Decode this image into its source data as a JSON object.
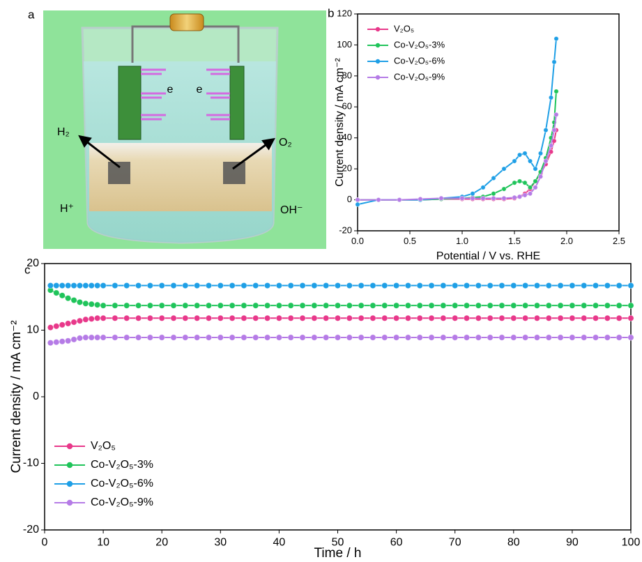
{
  "illustration": {
    "panel_label": "a",
    "electron_labels": [
      "e",
      "e"
    ],
    "left_gas": "H₂",
    "right_gas": "O₂",
    "left_ion": "H⁺",
    "right_ion": "OH⁻"
  },
  "chart_data": [
    {
      "type": "line",
      "panel_label": "b",
      "x_label": "Potential / V vs. RHE",
      "y_label": "Current density / mA cm⁻²",
      "x": [
        0,
        0.2,
        0.4,
        0.6,
        0.8,
        1.0,
        1.1,
        1.2,
        1.3,
        1.4,
        1.5,
        1.55,
        1.6,
        1.65,
        1.7,
        1.75,
        1.8,
        1.85,
        1.88,
        1.9
      ],
      "series": [
        {
          "name": "V₂O₅",
          "color": "#e8388a",
          "values": [
            0,
            0,
            0,
            0,
            0.5,
            0.5,
            0.5,
            0.5,
            0.5,
            0.5,
            1,
            2,
            4,
            7,
            12,
            17,
            23,
            31,
            38,
            45
          ]
        },
        {
          "name": "Co-V₂O₅-3%",
          "color": "#1fc45a",
          "values": [
            0,
            0,
            0,
            0,
            0.5,
            1,
            1.5,
            2,
            4,
            7,
            11,
            12,
            11,
            8,
            12,
            18,
            27,
            40,
            50,
            70
          ]
        },
        {
          "name": "Co-V₂O₅-6%",
          "color": "#1e9fe6",
          "values": [
            -3,
            0,
            0,
            0,
            1,
            2,
            4,
            8,
            14,
            20,
            25,
            29,
            30,
            25,
            20,
            30,
            45,
            66,
            89,
            104
          ]
        },
        {
          "name": "Co-V₂O₅-9%",
          "color": "#b57be6",
          "values": [
            0,
            0,
            0,
            0.5,
            1,
            1,
            1,
            1,
            1,
            1,
            1.5,
            2,
            3,
            4,
            8,
            15,
            25,
            35,
            45,
            55
          ]
        }
      ],
      "xlim": [
        0,
        2.5
      ],
      "ylim": [
        -20,
        120
      ],
      "xticks": [
        {
          "value": 0,
          "label": "0.0"
        },
        0.5,
        {
          "value": 1,
          "label": "1.0"
        },
        1.5,
        {
          "value": 2,
          "label": "2.0"
        },
        2.5
      ],
      "yticks": [
        -20,
        0,
        20,
        40,
        60,
        80,
        100,
        120
      ],
      "legend": "upper left"
    },
    {
      "type": "line",
      "panel_label": "c",
      "x_label": "Time / h",
      "y_label": "Current density / mA cm⁻²",
      "x": [
        1,
        2,
        3,
        4,
        5,
        6,
        7,
        8,
        9,
        10,
        12,
        14,
        16,
        18,
        20,
        22,
        24,
        26,
        28,
        30,
        32,
        34,
        36,
        38,
        40,
        42,
        44,
        46,
        48,
        50,
        52,
        54,
        56,
        58,
        60,
        62,
        64,
        66,
        68,
        70,
        72,
        74,
        76,
        78,
        80,
        82,
        84,
        86,
        88,
        90,
        92,
        94,
        96,
        98,
        100
      ],
      "series": [
        {
          "name": "V₂O₅",
          "color": "#e8388a",
          "values": [
            10.4,
            10.6,
            10.8,
            11,
            11.2,
            11.4,
            11.6,
            11.7,
            11.8,
            11.8,
            11.8,
            11.8,
            11.8,
            11.8,
            11.8,
            11.8,
            11.8,
            11.8,
            11.8,
            11.8,
            11.8,
            11.8,
            11.8,
            11.8,
            11.8,
            11.8,
            11.8,
            11.8,
            11.8,
            11.8,
            11.8,
            11.8,
            11.8,
            11.8,
            11.8,
            11.8,
            11.8,
            11.8,
            11.8,
            11.8,
            11.8,
            11.8,
            11.8,
            11.8,
            11.8,
            11.8,
            11.8,
            11.8,
            11.8,
            11.8,
            11.8,
            11.8,
            11.8,
            11.8,
            11.8
          ]
        },
        {
          "name": "Co-V₂O₅-3%",
          "color": "#1fc45a",
          "values": [
            16,
            15.6,
            15.2,
            14.8,
            14.5,
            14.2,
            14,
            13.9,
            13.8,
            13.7,
            13.7,
            13.7,
            13.7,
            13.7,
            13.7,
            13.7,
            13.7,
            13.7,
            13.7,
            13.7,
            13.7,
            13.7,
            13.7,
            13.7,
            13.7,
            13.7,
            13.7,
            13.7,
            13.7,
            13.7,
            13.7,
            13.7,
            13.7,
            13.7,
            13.7,
            13.7,
            13.7,
            13.7,
            13.7,
            13.7,
            13.7,
            13.7,
            13.7,
            13.7,
            13.7,
            13.7,
            13.7,
            13.7,
            13.7,
            13.7,
            13.7,
            13.7,
            13.7,
            13.7,
            13.7
          ]
        },
        {
          "name": "Co-V₂O₅-6%",
          "color": "#1e9fe6",
          "values": [
            16.7,
            16.7,
            16.7,
            16.7,
            16.7,
            16.7,
            16.7,
            16.7,
            16.7,
            16.7,
            16.7,
            16.7,
            16.7,
            16.7,
            16.7,
            16.7,
            16.7,
            16.7,
            16.7,
            16.7,
            16.7,
            16.7,
            16.7,
            16.7,
            16.7,
            16.7,
            16.7,
            16.7,
            16.7,
            16.7,
            16.7,
            16.7,
            16.7,
            16.7,
            16.7,
            16.7,
            16.7,
            16.7,
            16.7,
            16.7,
            16.7,
            16.7,
            16.7,
            16.7,
            16.7,
            16.7,
            16.7,
            16.7,
            16.7,
            16.7,
            16.7,
            16.7,
            16.7,
            16.7,
            16.7
          ]
        },
        {
          "name": "Co-V₂O₅-9%",
          "color": "#b57be6",
          "values": [
            8.1,
            8.2,
            8.3,
            8.4,
            8.6,
            8.8,
            8.9,
            8.9,
            8.9,
            8.9,
            8.9,
            8.9,
            8.9,
            8.9,
            8.9,
            8.9,
            8.9,
            8.9,
            8.9,
            8.9,
            8.9,
            8.9,
            8.9,
            8.9,
            8.9,
            8.9,
            8.9,
            8.9,
            8.9,
            8.9,
            8.9,
            8.9,
            8.9,
            8.9,
            8.9,
            8.9,
            8.9,
            8.9,
            8.9,
            8.9,
            8.9,
            8.9,
            8.9,
            8.9,
            8.9,
            8.9,
            8.9,
            8.9,
            8.9,
            8.9,
            8.9,
            8.9,
            8.9,
            8.9,
            8.9
          ]
        }
      ],
      "xlim": [
        0,
        100
      ],
      "ylim": [
        -20,
        20
      ],
      "xticks": [
        0,
        10,
        20,
        30,
        40,
        50,
        60,
        70,
        80,
        90,
        100
      ],
      "yticks": [
        -20,
        -10,
        0,
        10,
        20
      ],
      "legend": "lower left"
    }
  ]
}
